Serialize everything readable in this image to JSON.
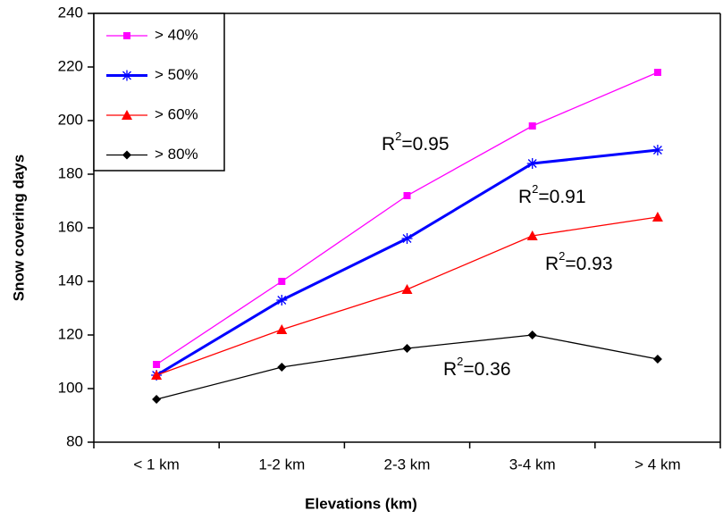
{
  "chart_data": {
    "type": "line",
    "x_label": "Elevations (km)",
    "y_label": "Snow covering days",
    "categories": [
      "< 1 km",
      "1-2 km",
      "2-3 km",
      "3-4 km",
      "> 4 km"
    ],
    "series": [
      {
        "name": "> 40%",
        "color": "#ff00ff",
        "marker": "square",
        "line_width": 1.3,
        "values": [
          109,
          140,
          172,
          198,
          218
        ]
      },
      {
        "name": "> 50%",
        "color": "#0000ff",
        "marker": "asterisk",
        "line_width": 3,
        "values": [
          105,
          133,
          156,
          184,
          189
        ]
      },
      {
        "name": "> 60%",
        "color": "#ff0000",
        "marker": "triangle",
        "line_width": 1.3,
        "values": [
          105,
          122,
          137,
          157,
          164
        ]
      },
      {
        "name": "> 80%",
        "color": "#000000",
        "marker": "diamond",
        "line_width": 1.3,
        "values": [
          96,
          108,
          115,
          120,
          111
        ]
      }
    ],
    "ylim": [
      80,
      240
    ],
    "yticks": [
      80,
      100,
      120,
      140,
      160,
      180,
      200,
      220,
      240
    ],
    "grid": false,
    "legend": "top-left",
    "annotations": [
      {
        "base": "R",
        "sup": "2",
        "text": "=0.95"
      },
      {
        "base": "R",
        "sup": "2",
        "text": "=0.91"
      },
      {
        "base": "R",
        "sup": "2",
        "text": "=0.93"
      },
      {
        "base": "R",
        "sup": "2",
        "text": "=0.36"
      }
    ]
  }
}
